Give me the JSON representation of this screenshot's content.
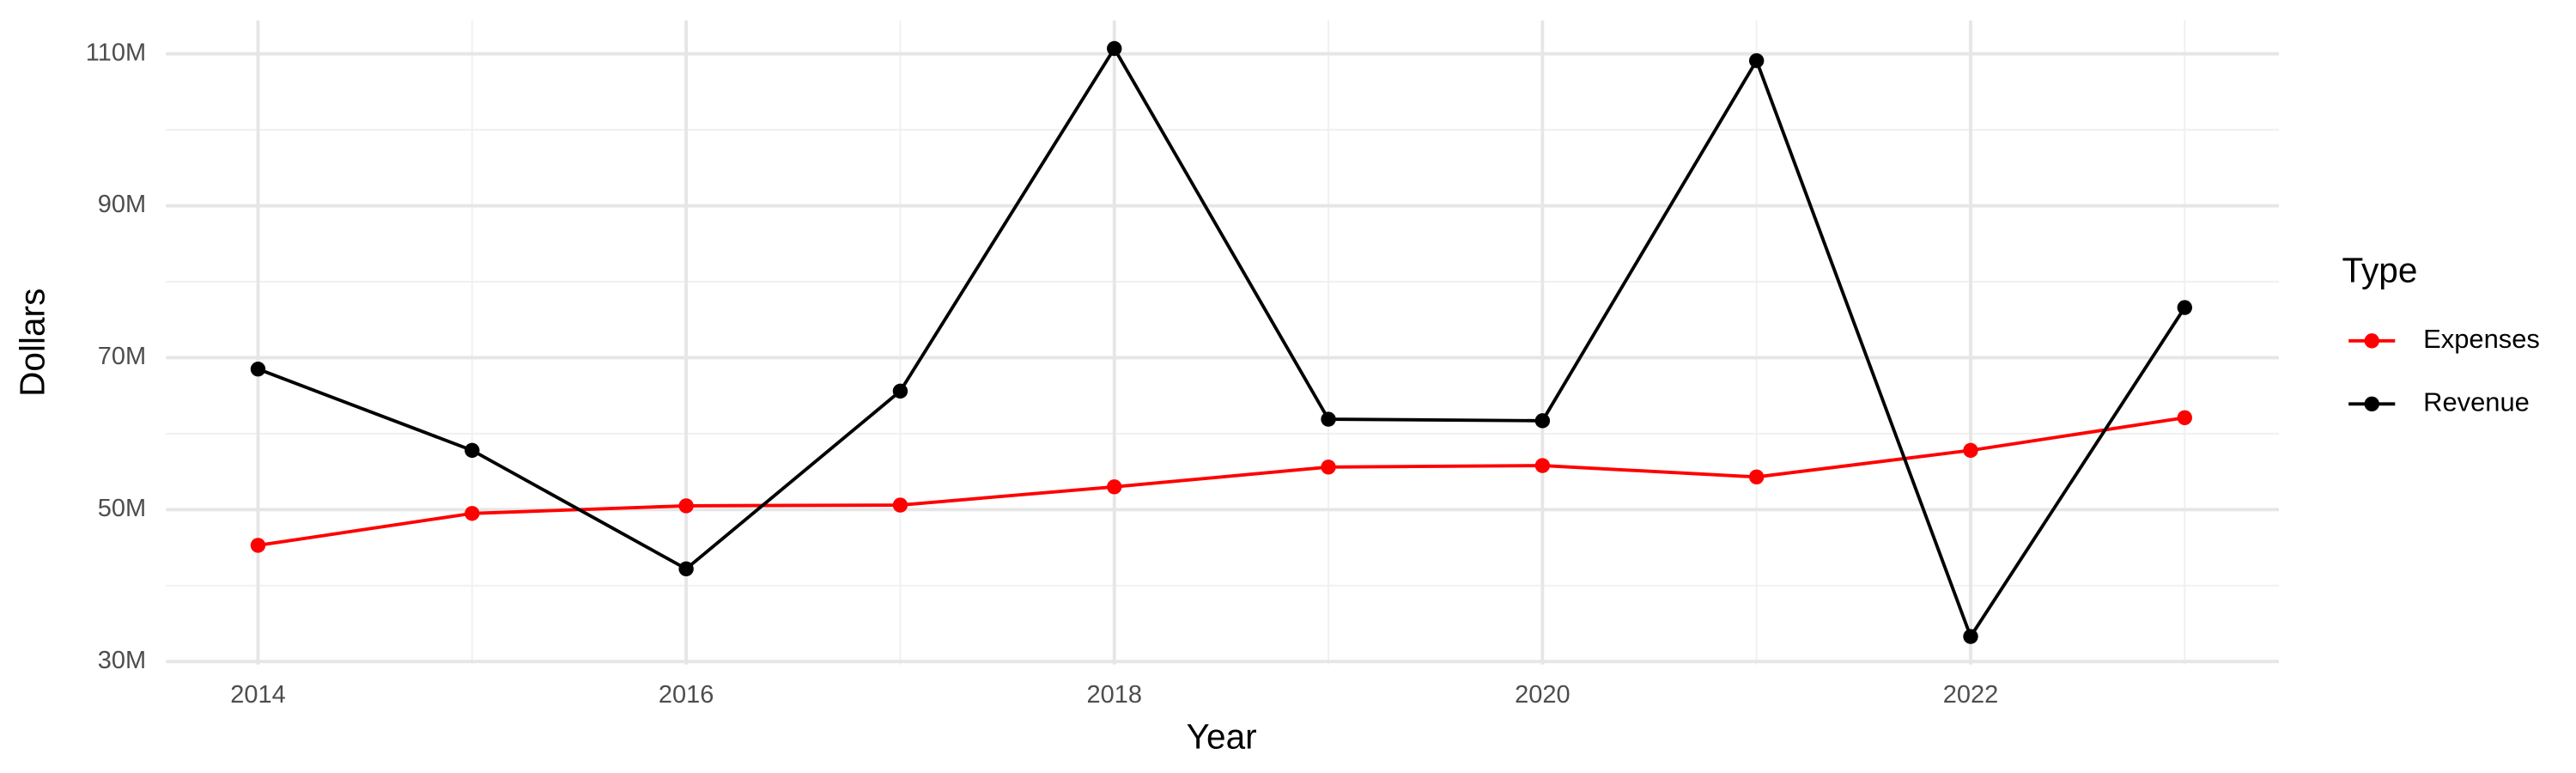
{
  "chart_data": {
    "type": "line",
    "x_label": "Year",
    "y_label": "Dollars",
    "legend_title": "Type",
    "legend_position": "right",
    "grid": true,
    "x": [
      2014,
      2015,
      2016,
      2017,
      2018,
      2019,
      2020,
      2021,
      2022,
      2023
    ],
    "series": [
      {
        "name": "Expenses",
        "color": "#ff0000",
        "values": [
          45300000,
          49500000,
          50500000,
          50600000,
          53000000,
          55600000,
          55800000,
          54300000,
          57800000,
          62100000
        ]
      },
      {
        "name": "Revenue",
        "color": "#000000",
        "values": [
          68500000,
          57800000,
          42200000,
          65600000,
          110700000,
          61900000,
          61700000,
          109100000,
          33300000,
          76600000
        ]
      }
    ],
    "xlim": [
      2013.57,
      2023.44
    ],
    "xticks": [
      2014,
      2016,
      2018,
      2020,
      2022
    ],
    "x_minor_ticks": [
      2015,
      2017,
      2019,
      2021,
      2023
    ],
    "ylim": [
      29600000,
      114400000
    ],
    "yticks": [
      {
        "value": 30000000,
        "label": "30M"
      },
      {
        "value": 50000000,
        "label": "50M"
      },
      {
        "value": 70000000,
        "label": "70M"
      },
      {
        "value": 90000000,
        "label": "90M"
      },
      {
        "value": 110000000,
        "label": "110M"
      }
    ],
    "y_minor_ticks": [
      40000000,
      60000000,
      80000000,
      100000000
    ]
  }
}
